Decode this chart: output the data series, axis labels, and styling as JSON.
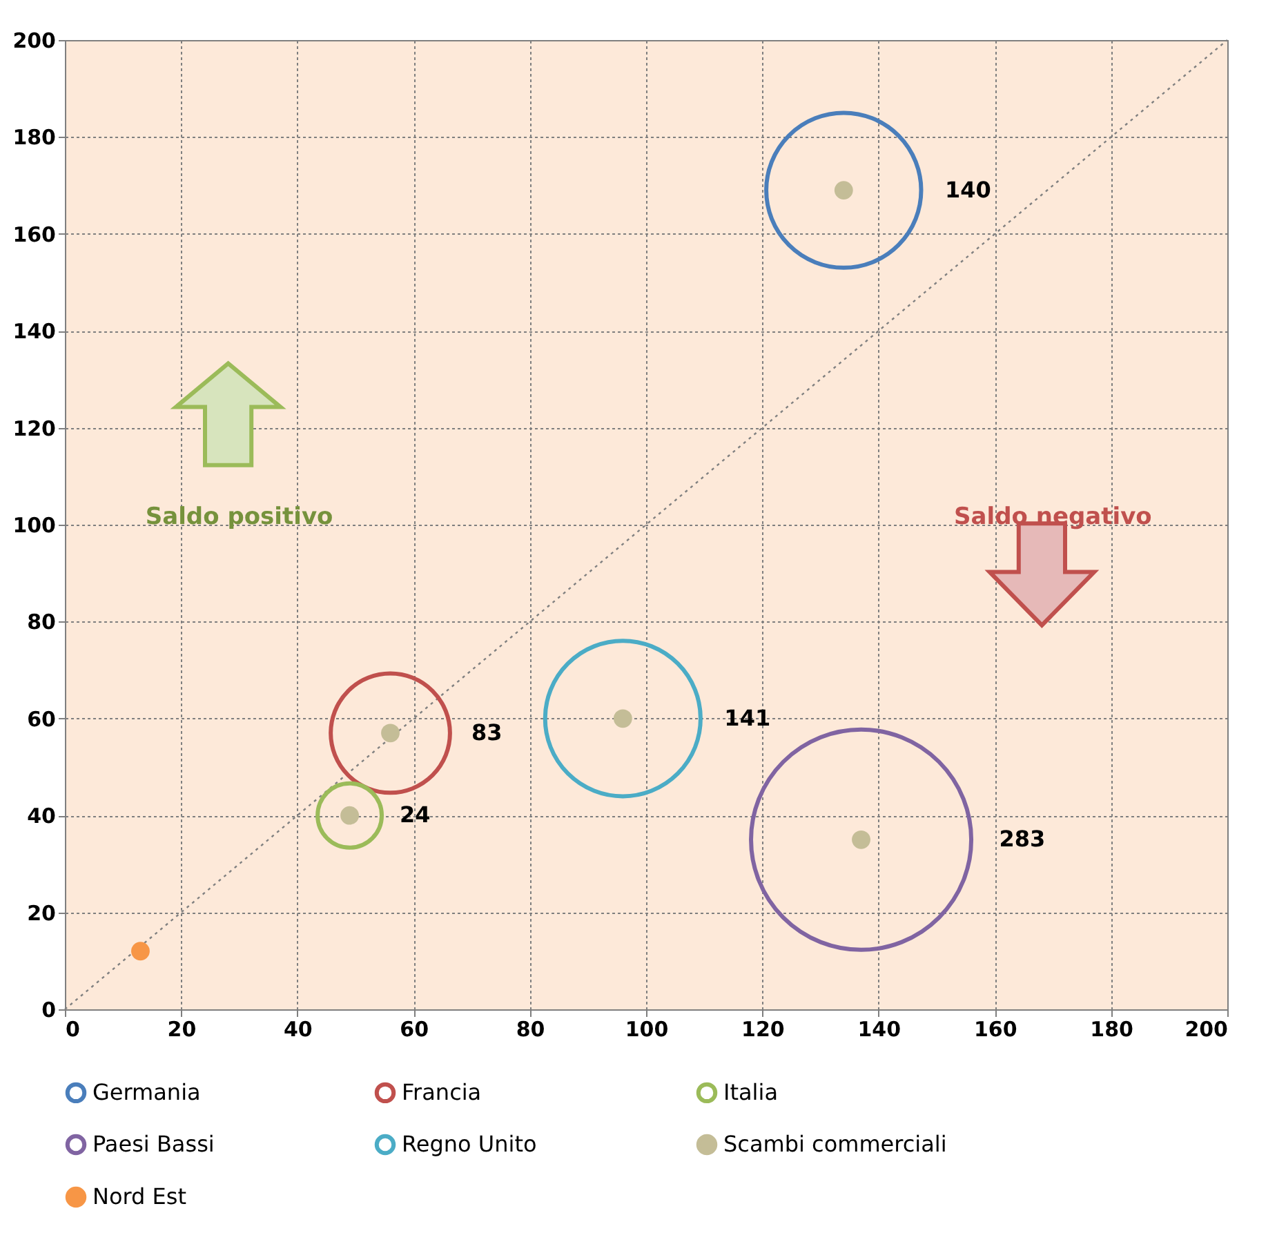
{
  "chart_data": {
    "type": "bubble",
    "xlim": [
      0,
      200
    ],
    "ylim": [
      0,
      200
    ],
    "xticks": [
      0,
      20,
      40,
      60,
      80,
      100,
      120,
      140,
      160,
      180,
      200
    ],
    "yticks": [
      0,
      20,
      40,
      60,
      80,
      100,
      120,
      140,
      160,
      180,
      200
    ],
    "grid": true,
    "legend": "bottom",
    "annotations": [
      "Saldo positivo",
      "Saldo negativo"
    ],
    "series": [
      {
        "type": "line",
        "x": [
          0,
          200
        ],
        "values": [
          0,
          200
        ],
        "color": "#808080",
        "line_style": "dotted"
      },
      {
        "name": "Germania",
        "x": [
          134
        ],
        "values": [
          169
        ],
        "sizes": [
          140
        ],
        "value_labels": [
          "140"
        ],
        "color": "#4a7ebb",
        "marker": "circle"
      },
      {
        "name": "Francia",
        "x": [
          56
        ],
        "values": [
          57
        ],
        "sizes": [
          83
        ],
        "value_labels": [
          "83"
        ],
        "color": "#c0504d",
        "marker": "circle"
      },
      {
        "name": "Italia",
        "x": [
          49
        ],
        "values": [
          40
        ],
        "sizes": [
          24
        ],
        "value_labels": [
          "24"
        ],
        "color": "#9bbb59",
        "marker": "circle"
      },
      {
        "name": "Paesi Bassi",
        "x": [
          137
        ],
        "values": [
          35
        ],
        "sizes": [
          283
        ],
        "value_labels": [
          "283"
        ],
        "color": "#8064a2",
        "marker": "circle"
      },
      {
        "name": "Regno Unito",
        "x": [
          96
        ],
        "values": [
          60
        ],
        "sizes": [
          141
        ],
        "value_labels": [
          "141"
        ],
        "color": "#4bacc6",
        "marker": "circle"
      },
      {
        "name": "Scambi commerciali",
        "type": "scatter",
        "x": [
          134,
          56,
          49,
          137,
          96
        ],
        "values": [
          169,
          57,
          40,
          35,
          60
        ],
        "color": "#c4bd97",
        "marker": "circle"
      },
      {
        "name": "Nord Est",
        "type": "scatter",
        "x": [
          13
        ],
        "values": [
          12
        ],
        "color": "#f79646",
        "marker": "circle"
      }
    ]
  }
}
